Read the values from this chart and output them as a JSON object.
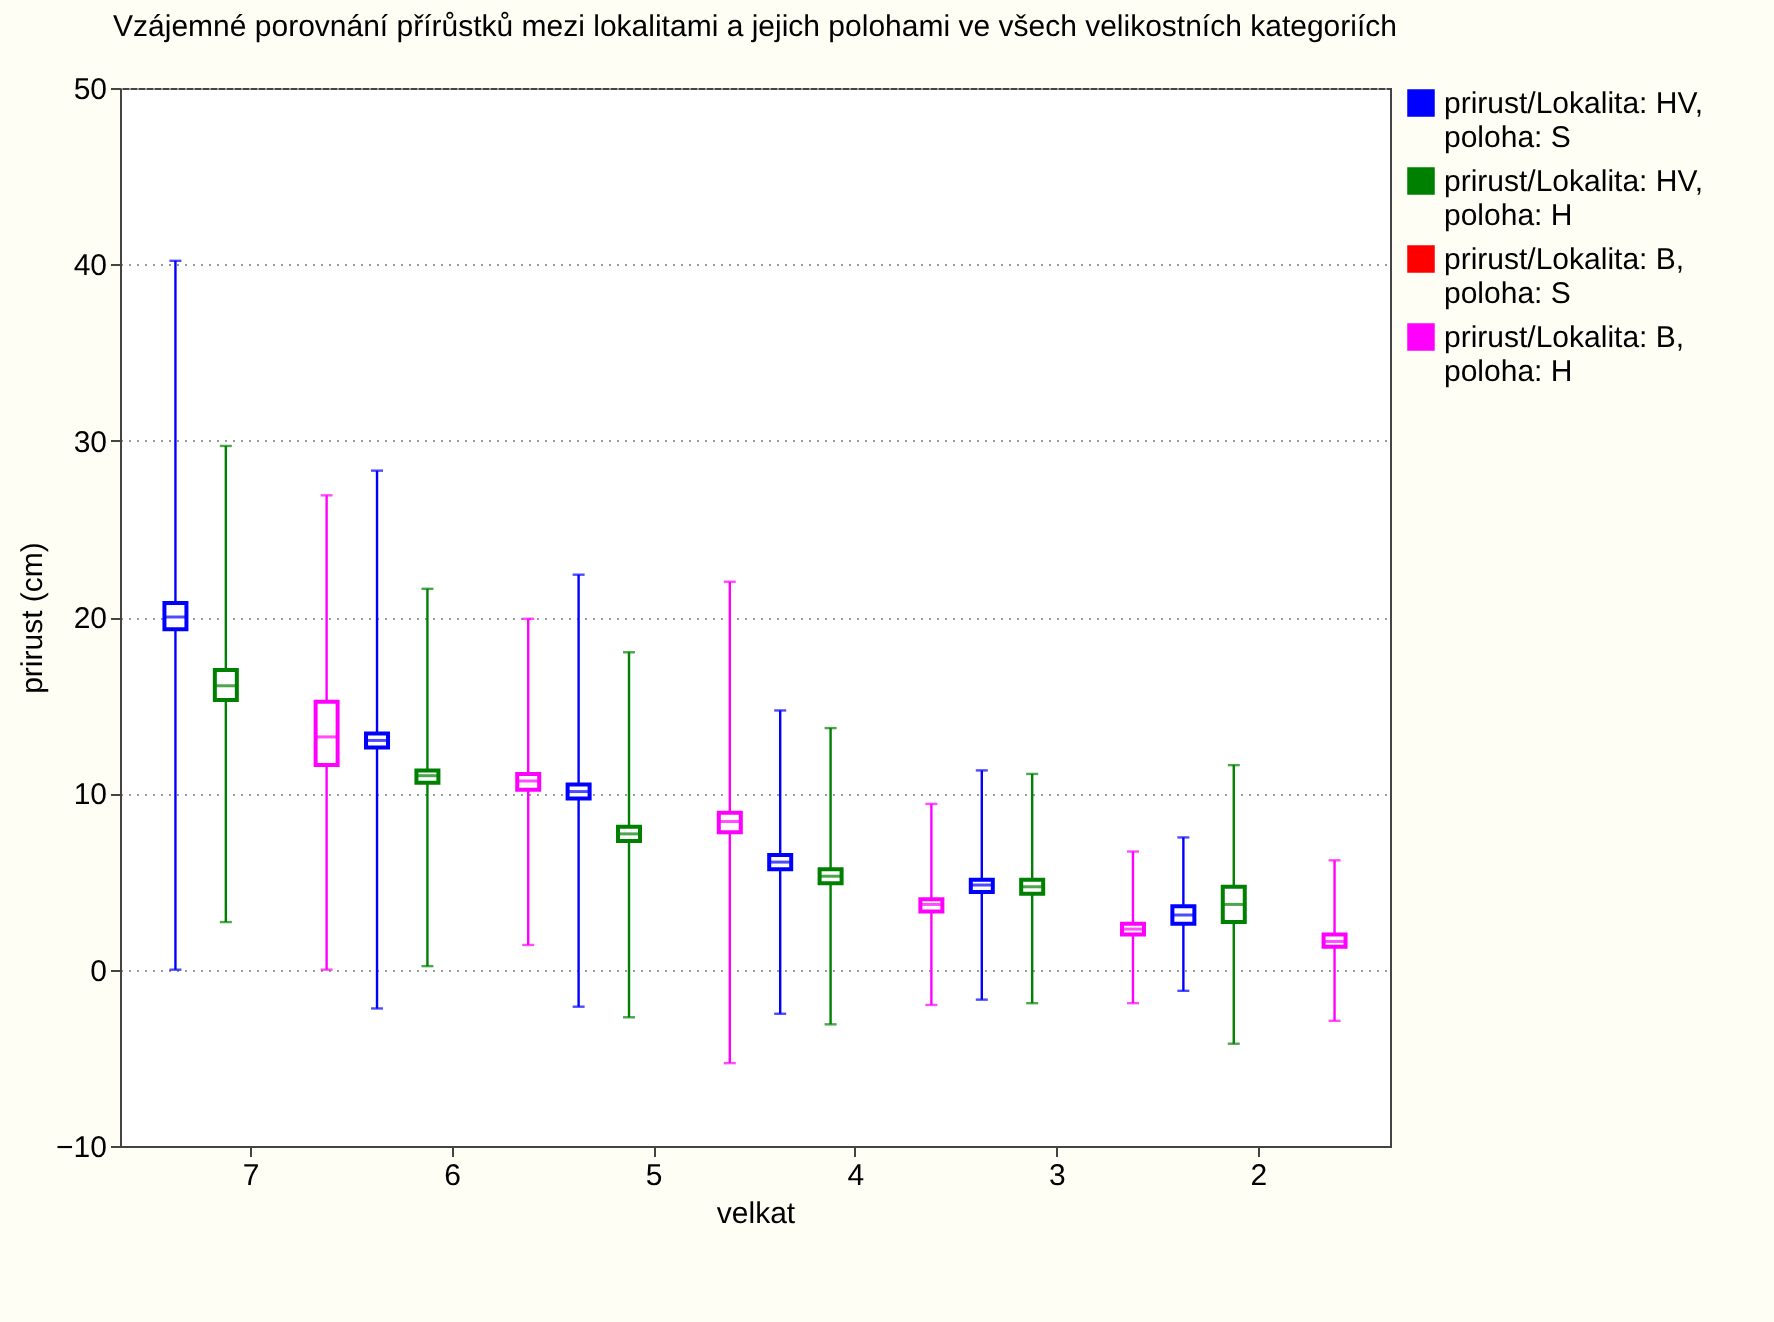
{
  "chart_data": {
    "type": "box",
    "title": "Vzájemné porovnání přírůstků mezi lokalitami a jejich polohami ve všech velikostních kategoriích",
    "xlabel": "velkat",
    "ylabel": "prirust (cm)",
    "categories": [
      "7",
      "6",
      "5",
      "4",
      "3",
      "2"
    ],
    "ylim": [
      -10,
      50
    ],
    "yticks": [
      -10,
      0,
      10,
      20,
      30,
      40,
      50
    ],
    "grid": "y",
    "legend": "right",
    "series": [
      {
        "name": "prirust/Lokalita: HV, poloha: S",
        "color": "#0000ff",
        "boxes": [
          {
            "low": 0.0,
            "q1": 19.3,
            "median": 20.0,
            "q3": 20.8,
            "high": 40.2
          },
          {
            "low": -2.2,
            "q1": 12.6,
            "median": 13.0,
            "q3": 13.4,
            "high": 28.3
          },
          {
            "low": -2.1,
            "q1": 9.7,
            "median": 10.1,
            "q3": 10.5,
            "high": 22.4
          },
          {
            "low": -2.5,
            "q1": 5.7,
            "median": 6.1,
            "q3": 6.5,
            "high": 14.7
          },
          {
            "low": -1.7,
            "q1": 4.4,
            "median": 4.8,
            "q3": 5.1,
            "high": 11.3
          },
          {
            "low": -1.2,
            "q1": 2.6,
            "median": 3.1,
            "q3": 3.6,
            "high": 7.5
          }
        ]
      },
      {
        "name": "prirust/Lokalita: HV, poloha: H",
        "color": "#008000",
        "boxes": [
          {
            "low": 2.7,
            "q1": 15.3,
            "median": 16.1,
            "q3": 17.0,
            "high": 29.7
          },
          {
            "low": 0.2,
            "q1": 10.6,
            "median": 11.0,
            "q3": 11.3,
            "high": 21.6
          },
          {
            "low": -2.7,
            "q1": 7.3,
            "median": 7.7,
            "q3": 8.1,
            "high": 18.0
          },
          {
            "low": -3.1,
            "q1": 4.9,
            "median": 5.3,
            "q3": 5.7,
            "high": 13.7
          },
          {
            "low": -1.9,
            "q1": 4.3,
            "median": 4.7,
            "q3": 5.1,
            "high": 11.1
          },
          {
            "low": -4.2,
            "q1": 2.7,
            "median": 3.7,
            "q3": 4.7,
            "high": 11.6
          }
        ]
      },
      {
        "name": "prirust/Lokalita: B, poloha: S",
        "color": "#ff0000",
        "boxes": [
          null,
          null,
          null,
          null,
          null,
          null
        ]
      },
      {
        "name": "prirust/Lokalita: B, poloha: H",
        "color": "#ff00ff",
        "boxes": [
          {
            "low": 0.0,
            "q1": 11.6,
            "median": 13.2,
            "q3": 15.2,
            "high": 26.9
          },
          {
            "low": 1.4,
            "q1": 10.2,
            "median": 10.7,
            "q3": 11.1,
            "high": 19.9
          },
          {
            "low": -5.3,
            "q1": 7.8,
            "median": 8.4,
            "q3": 8.9,
            "high": 22.0
          },
          {
            "low": -2.0,
            "q1": 3.3,
            "median": 3.7,
            "q3": 4.0,
            "high": 9.4
          },
          {
            "low": -1.9,
            "q1": 2.0,
            "median": 2.3,
            "q3": 2.6,
            "high": 6.7
          },
          {
            "low": -2.9,
            "q1": 1.3,
            "median": 1.6,
            "q3": 2.0,
            "high": 6.2
          }
        ]
      }
    ]
  }
}
